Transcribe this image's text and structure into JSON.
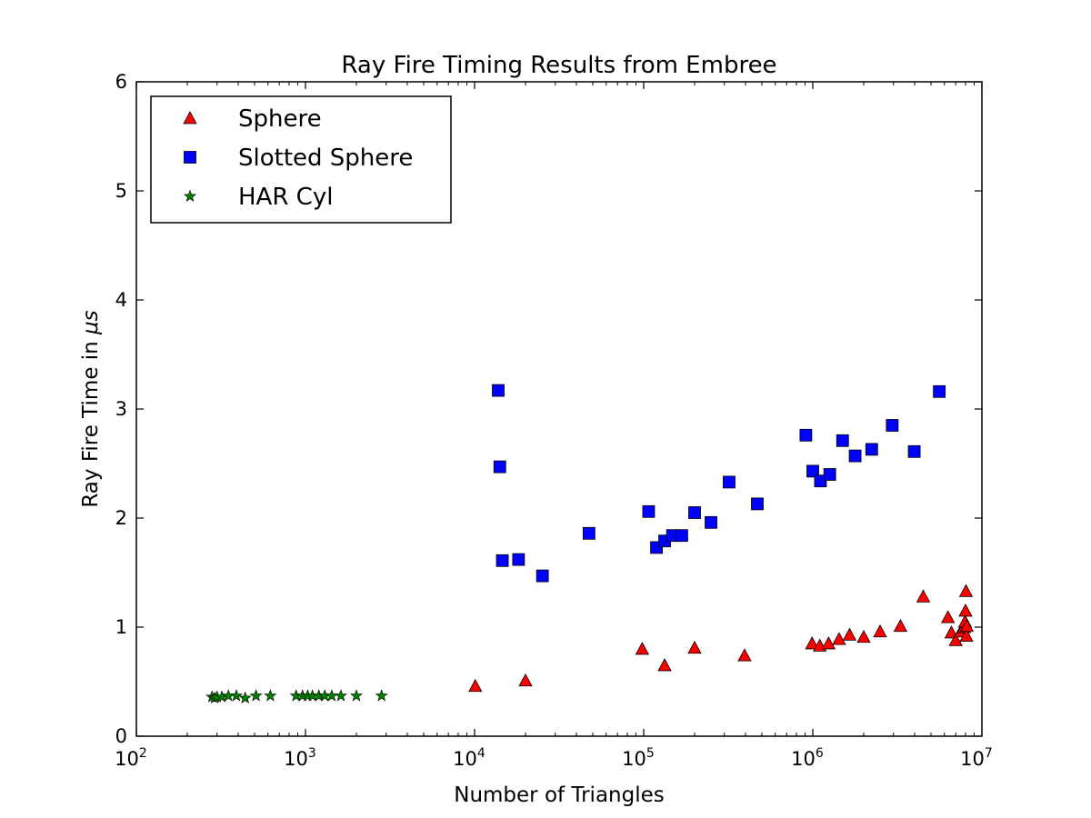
{
  "chart_data": {
    "type": "scatter",
    "title": "Ray Fire Timing Results from Embree",
    "xlabel": "Number of Triangles",
    "ylabel_prefix": "Ray Fire Time in ",
    "ylabel_unit": "μs",
    "xscale": "log",
    "xlim": [
      100,
      10000000
    ],
    "ylim": [
      0,
      6
    ],
    "x_ticks": [
      {
        "base": "10",
        "exp": "2",
        "value": 100
      },
      {
        "base": "10",
        "exp": "3",
        "value": 1000
      },
      {
        "base": "10",
        "exp": "4",
        "value": 10000
      },
      {
        "base": "10",
        "exp": "5",
        "value": 100000
      },
      {
        "base": "10",
        "exp": "6",
        "value": 1000000
      },
      {
        "base": "10",
        "exp": "7",
        "value": 10000000
      }
    ],
    "y_ticks": [
      "0",
      "1",
      "2",
      "3",
      "4",
      "5",
      "6"
    ],
    "grid": false,
    "legend_position": "top-left",
    "series": [
      {
        "name": "Sphere",
        "marker": "triangle",
        "color": "#ff0000",
        "points": [
          [
            10100,
            0.46
          ],
          [
            20000,
            0.51
          ],
          [
            98000,
            0.8
          ],
          [
            133000,
            0.65
          ],
          [
            200000,
            0.81
          ],
          [
            395000,
            0.74
          ],
          [
            990000,
            0.85
          ],
          [
            1100000,
            0.83
          ],
          [
            1240000,
            0.85
          ],
          [
            1430000,
            0.89
          ],
          [
            1650000,
            0.93
          ],
          [
            2000000,
            0.91
          ],
          [
            2500000,
            0.96
          ],
          [
            3300000,
            1.01
          ],
          [
            4500000,
            1.28
          ],
          [
            6300000,
            1.09
          ],
          [
            6600000,
            0.95
          ],
          [
            7000000,
            0.88
          ],
          [
            7500000,
            0.96
          ],
          [
            7850000,
            1.0
          ],
          [
            7950000,
            1.05
          ],
          [
            8000000,
            1.15
          ],
          [
            8050000,
            1.33
          ],
          [
            8100000,
            0.92
          ],
          [
            8150000,
            1.01
          ]
        ]
      },
      {
        "name": "Slotted Sphere",
        "marker": "square",
        "color": "#0000ff",
        "points": [
          [
            13800,
            3.17
          ],
          [
            14100,
            2.47
          ],
          [
            14600,
            1.61
          ],
          [
            18200,
            1.62
          ],
          [
            25200,
            1.47
          ],
          [
            47500,
            1.86
          ],
          [
            107000,
            2.06
          ],
          [
            119000,
            1.73
          ],
          [
            133000,
            1.79
          ],
          [
            148000,
            1.84
          ],
          [
            168000,
            1.84
          ],
          [
            200000,
            2.05
          ],
          [
            250000,
            1.96
          ],
          [
            320000,
            2.33
          ],
          [
            470000,
            2.13
          ],
          [
            910000,
            2.76
          ],
          [
            1000000,
            2.43
          ],
          [
            1110000,
            2.34
          ],
          [
            1260000,
            2.4
          ],
          [
            1500000,
            2.71
          ],
          [
            1780000,
            2.57
          ],
          [
            2230000,
            2.63
          ],
          [
            2950000,
            2.85
          ],
          [
            3980000,
            2.61
          ],
          [
            5600000,
            3.16
          ]
        ]
      },
      {
        "name": "HAR Cyl",
        "marker": "star",
        "color": "#007f00",
        "points": [
          [
            280,
            0.36
          ],
          [
            290,
            0.35
          ],
          [
            300,
            0.36
          ],
          [
            320,
            0.36
          ],
          [
            350,
            0.37
          ],
          [
            390,
            0.37
          ],
          [
            440,
            0.35
          ],
          [
            510,
            0.37
          ],
          [
            620,
            0.37
          ],
          [
            880,
            0.37
          ],
          [
            960,
            0.37
          ],
          [
            1030,
            0.37
          ],
          [
            1100,
            0.37
          ],
          [
            1200,
            0.37
          ],
          [
            1300,
            0.37
          ],
          [
            1430,
            0.37
          ],
          [
            1620,
            0.37
          ],
          [
            2000,
            0.37
          ],
          [
            2820,
            0.37
          ]
        ]
      }
    ]
  }
}
